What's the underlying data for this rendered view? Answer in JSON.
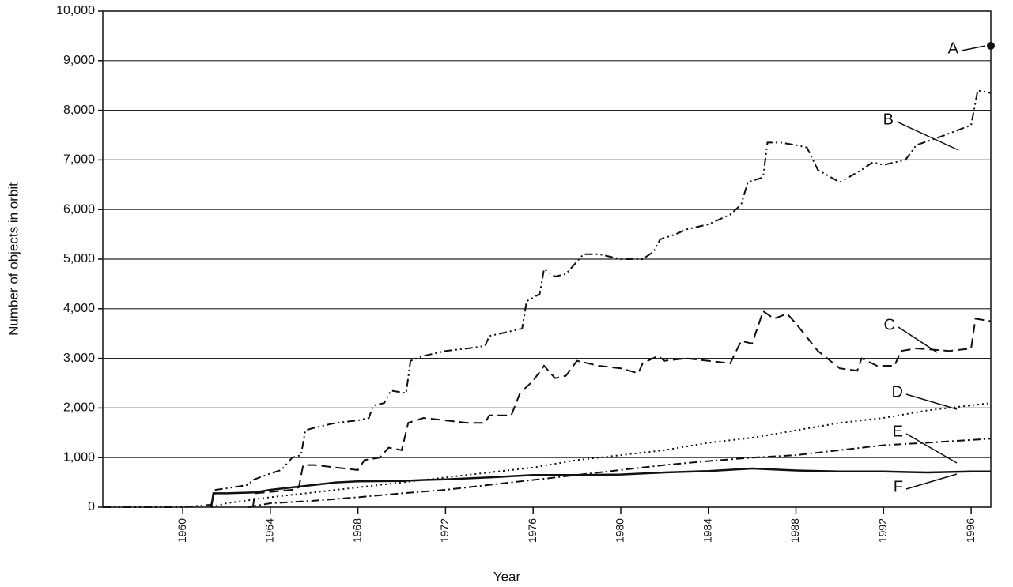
{
  "chart_data": {
    "type": "line",
    "x_label": "Year",
    "y_label": "Number of objects in orbit",
    "xlim": [
      1956.35,
      1996.9
    ],
    "xticks": [
      1960,
      1964,
      1968,
      1972,
      1976,
      1980,
      1984,
      1988,
      1992,
      1996
    ],
    "ylim": [
      0,
      10000
    ],
    "yticks": [
      0,
      {
        "value": 1000,
        "label": "1,000"
      },
      {
        "value": 2000,
        "label": "2,000"
      },
      {
        "value": 3000,
        "label": "3,000"
      },
      {
        "value": 4000,
        "label": "4,000"
      },
      {
        "value": 5000,
        "label": "5,000"
      },
      {
        "value": 6000,
        "label": "6,000"
      },
      {
        "value": 7000,
        "label": "7,000"
      },
      {
        "value": 8000,
        "label": "8,000"
      },
      {
        "value": 9000,
        "label": "9,000"
      },
      {
        "value": 10000,
        "label": "10,000"
      }
    ],
    "grid": true,
    "series": [
      {
        "name": "A",
        "color": "#111111",
        "line_style": "point",
        "x": [
          1996.9
        ],
        "values": [
          9300
        ]
      },
      {
        "name": "B",
        "color": "#111111",
        "line_style": "dash-dot-dot",
        "x": [
          1956.35,
          1960,
          1961.3,
          1961.5,
          1962,
          1963,
          1963.2,
          1964,
          1964.5,
          1965,
          1965.4,
          1965.6,
          1966,
          1967,
          1968,
          1968.5,
          1968.7,
          1969.2,
          1969.5,
          1970.2,
          1970.4,
          1971,
          1972,
          1973,
          1973.8,
          1974,
          1975,
          1975.5,
          1975.7,
          1976.3,
          1976.5,
          1977,
          1977.5,
          1978.3,
          1979,
          1980,
          1981,
          1981.5,
          1981.8,
          1982.5,
          1983,
          1984,
          1985,
          1985.5,
          1985.8,
          1986.5,
          1986.7,
          1987.3,
          1988,
          1988.5,
          1989,
          1990,
          1991,
          1991.5,
          1992,
          1993,
          1993.5,
          1994.5,
          1996,
          1996.3,
          1996.9
        ],
        "values": [
          0,
          0,
          50,
          350,
          380,
          450,
          550,
          680,
          750,
          1000,
          1050,
          1550,
          1600,
          1700,
          1750,
          1800,
          2050,
          2100,
          2350,
          2300,
          2950,
          3050,
          3150,
          3200,
          3250,
          3450,
          3550,
          3600,
          4150,
          4300,
          4800,
          4650,
          4700,
          5100,
          5100,
          5000,
          5000,
          5150,
          5400,
          5500,
          5600,
          5700,
          5900,
          6100,
          6550,
          6650,
          7350,
          7350,
          7300,
          7250,
          6800,
          6550,
          6800,
          6950,
          6900,
          7000,
          7300,
          7450,
          7700,
          8400,
          8350
        ]
      },
      {
        "name": "C",
        "color": "#111111",
        "line_style": "dash",
        "x": [
          1963.2,
          1963.3,
          1965,
          1965.3,
          1965.5,
          1966,
          1968,
          1968.3,
          1969,
          1969.4,
          1970,
          1970.3,
          1971,
          1972,
          1973,
          1973.8,
          1974,
          1975,
          1975.4,
          1976,
          1976.5,
          1977,
          1977.5,
          1978,
          1979,
          1980,
          1980.8,
          1981,
          1981.7,
          1982,
          1983,
          1984,
          1985,
          1985.5,
          1986,
          1986.5,
          1987,
          1987.6,
          1988,
          1989,
          1990,
          1990.8,
          1991,
          1991.7,
          1992.5,
          1992.8,
          1993.5,
          1995,
          1996,
          1996.2,
          1996.9
        ],
        "values": [
          0,
          280,
          350,
          400,
          850,
          850,
          750,
          950,
          1000,
          1200,
          1150,
          1700,
          1800,
          1750,
          1700,
          1700,
          1850,
          1850,
          2300,
          2550,
          2850,
          2600,
          2650,
          2950,
          2850,
          2800,
          2700,
          2900,
          3050,
          2950,
          3000,
          2950,
          2900,
          3350,
          3300,
          3950,
          3800,
          3900,
          3700,
          3150,
          2800,
          2750,
          3000,
          2850,
          2850,
          3150,
          3200,
          3150,
          3200,
          3800,
          3750
        ]
      },
      {
        "name": "D",
        "color": "#111111",
        "line_style": "dot",
        "x": [
          1961.3,
          1962,
          1964,
          1966,
          1968,
          1970,
          1972,
          1974,
          1976,
          1978,
          1980,
          1982,
          1984,
          1986,
          1988,
          1990,
          1992,
          1994,
          1996.9
        ],
        "values": [
          0,
          80,
          200,
          300,
          400,
          500,
          600,
          700,
          800,
          950,
          1050,
          1150,
          1300,
          1400,
          1550,
          1700,
          1800,
          1950,
          2100
        ]
      },
      {
        "name": "E",
        "color": "#111111",
        "line_style": "dash-dot",
        "x": [
          1963,
          1964,
          1966,
          1968,
          1970,
          1972,
          1974,
          1976,
          1978,
          1980,
          1982,
          1984,
          1986,
          1988,
          1990,
          1992,
          1994,
          1996.9
        ],
        "values": [
          0,
          80,
          130,
          200,
          280,
          350,
          450,
          550,
          650,
          750,
          850,
          930,
          1000,
          1050,
          1150,
          1250,
          1300,
          1380
        ]
      },
      {
        "name": "F",
        "color": "#111111",
        "line_style": "solid",
        "x": [
          1961.3,
          1961.4,
          1962,
          1963.3,
          1964,
          1965,
          1966,
          1967,
          1968,
          1970,
          1971,
          1972,
          1974,
          1976,
          1978,
          1980,
          1982,
          1984,
          1986,
          1988,
          1990,
          1992,
          1994,
          1996,
          1996.9
        ],
        "values": [
          0,
          280,
          280,
          300,
          350,
          400,
          450,
          500,
          520,
          530,
          550,
          560,
          600,
          650,
          650,
          660,
          700,
          730,
          780,
          740,
          720,
          720,
          700,
          720,
          720
        ]
      }
    ]
  }
}
